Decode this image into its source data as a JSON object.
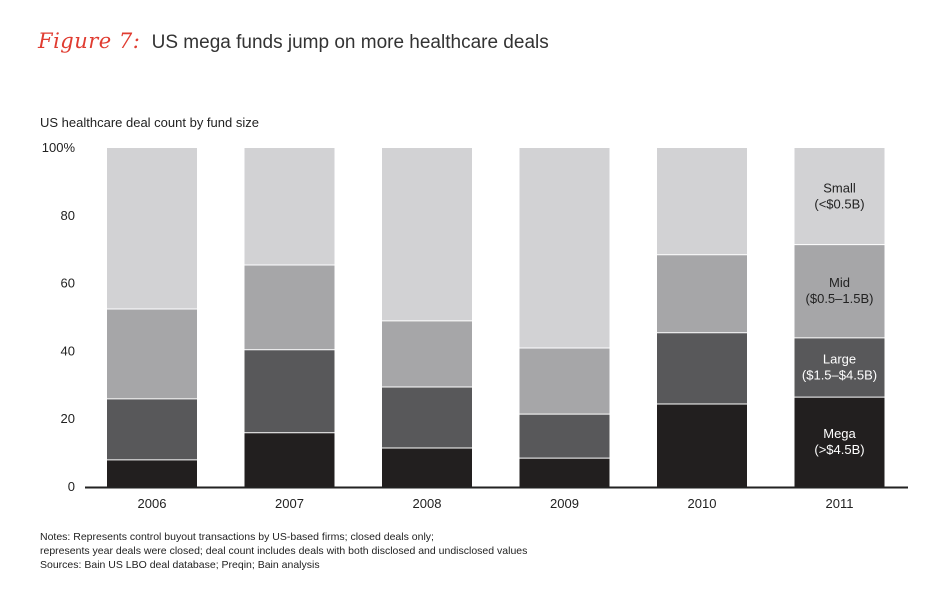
{
  "figure": {
    "label": "Figure 7:",
    "title": "US mega funds jump on more healthcare deals"
  },
  "chart_data": {
    "type": "bar",
    "stacked": true,
    "title": "US mega funds jump on more healthcare deals",
    "subtitle": "US healthcare deal count by fund size",
    "categories": [
      "2006",
      "2007",
      "2008",
      "2009",
      "2010",
      "2011"
    ],
    "ylim": [
      0,
      100
    ],
    "yticks": [
      {
        "value": 0,
        "label": "0"
      },
      {
        "value": 20,
        "label": "20"
      },
      {
        "value": 40,
        "label": "40"
      },
      {
        "value": 60,
        "label": "60"
      },
      {
        "value": 80,
        "label": "80"
      },
      {
        "value": 100,
        "label": "100%"
      }
    ],
    "series": [
      {
        "name": "Mega",
        "label_lines": [
          "Mega",
          "(>$4.5B)"
        ],
        "color": "#221f1f",
        "label_color": "#ffffff",
        "values": [
          8,
          16,
          11.5,
          8.5,
          24.5,
          26.5
        ]
      },
      {
        "name": "Large",
        "label_lines": [
          "Large",
          "($1.5–$4.5B)"
        ],
        "color": "#58585a",
        "label_color": "#ffffff",
        "values": [
          18,
          24.5,
          18,
          13,
          21,
          17.5
        ]
      },
      {
        "name": "Mid",
        "label_lines": [
          "Mid",
          "($0.5–1.5B)"
        ],
        "color": "#a6a6a8",
        "label_color": "#222222",
        "values": [
          26.5,
          25,
          19.5,
          19.5,
          23,
          27.5
        ]
      },
      {
        "name": "Small",
        "label_lines": [
          "Small",
          "(<$0.5B)"
        ],
        "color": "#d2d2d4",
        "label_color": "#222222",
        "values": [
          47.5,
          34.5,
          51,
          59,
          31.5,
          28.5
        ]
      }
    ],
    "series_labels_on_category": "2011"
  },
  "notes": {
    "line1": "Notes: Represents control buyout transactions by US-based firms; closed deals only;",
    "line2": "represents year deals were closed; deal count includes deals with both disclosed and undisclosed values",
    "line3": "Sources: Bain US LBO deal database; Preqin; Bain analysis"
  }
}
